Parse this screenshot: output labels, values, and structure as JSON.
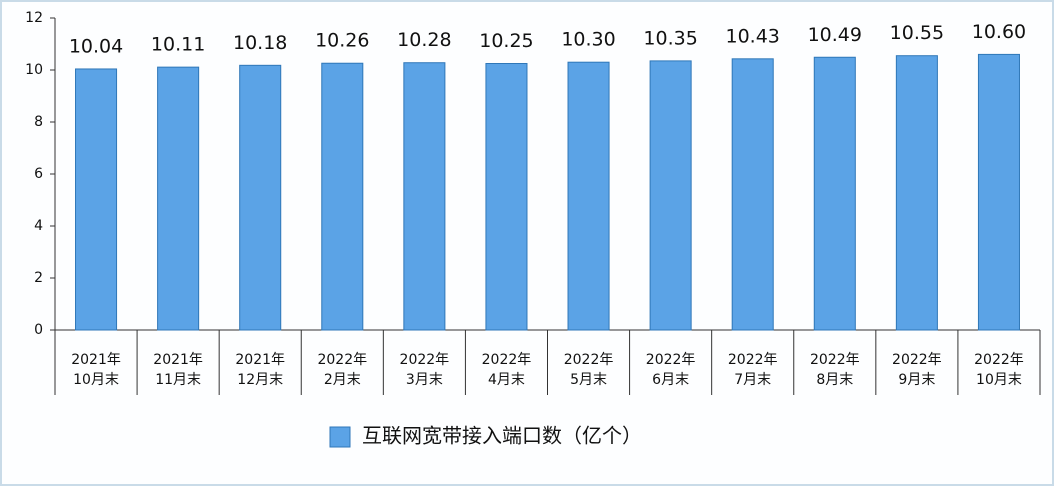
{
  "chart_data": {
    "type": "bar",
    "categories": [
      "2021年\n10月末",
      "2021年\n11月末",
      "2021年\n12月末",
      "2022年\n2月末",
      "2022年\n3月末",
      "2022年\n4月末",
      "2022年\n5月末",
      "2022年\n6月末",
      "2022年\n7月末",
      "2022年\n8月末",
      "2022年\n9月末",
      "2022年\n10月末"
    ],
    "series": [
      {
        "name": "互联网宽带接入端口数（亿个）",
        "color": "#5ba3e6",
        "values": [
          10.04,
          10.11,
          10.18,
          10.26,
          10.28,
          10.25,
          10.3,
          10.35,
          10.43,
          10.49,
          10.55,
          10.6
        ],
        "value_labels": [
          "10.04",
          "10.11",
          "10.18",
          "10.26",
          "10.28",
          "10.25",
          "10.30",
          "10.35",
          "10.43",
          "10.49",
          "10.55",
          "10.60"
        ]
      }
    ],
    "ylim": [
      0,
      12
    ],
    "yticks": [
      0,
      2,
      4,
      6,
      8,
      10,
      12
    ],
    "grid": false,
    "legend": "bottom"
  }
}
